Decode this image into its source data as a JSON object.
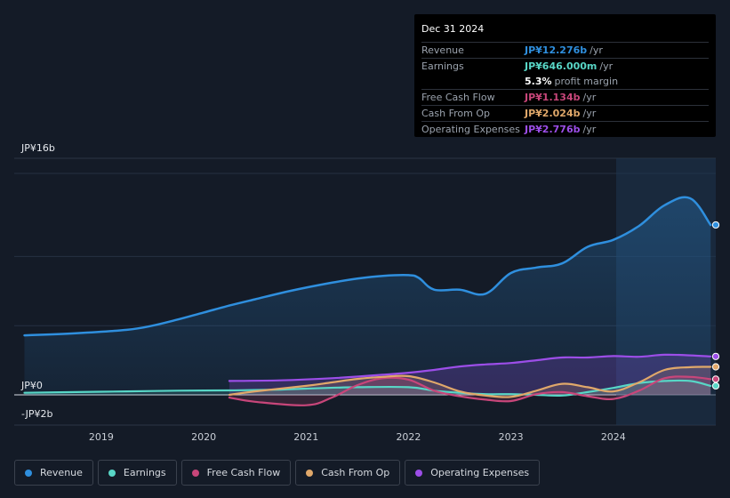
{
  "tooltip": {
    "date": "Dec 31 2024",
    "revenue_label": "Revenue",
    "revenue_value": "JP¥12.276b",
    "earnings_label": "Earnings",
    "earnings_value": "JP¥646.000m",
    "margin_value": "5.3%",
    "margin_label": "profit margin",
    "fcf_label": "Free Cash Flow",
    "fcf_value": "JP¥1.134b",
    "cfo_label": "Cash From Op",
    "cfo_value": "JP¥2.024b",
    "opex_label": "Operating Expenses",
    "opex_value": "JP¥2.776b",
    "unit": "/yr"
  },
  "legend": {
    "revenue": "Revenue",
    "earnings": "Earnings",
    "fcf": "Free Cash Flow",
    "cfo": "Cash From Op",
    "opex": "Operating Expenses"
  },
  "colors": {
    "revenue": "#2f8fde",
    "earnings": "#58d6c6",
    "fcf": "#c8467a",
    "cfo": "#e0a86a",
    "opex": "#9c4ee8"
  },
  "chart_data": {
    "type": "area",
    "ylabels": [
      "JP¥16b",
      "JP¥0",
      "-JP¥2b"
    ],
    "ylim": [
      -2,
      16
    ],
    "xlim": [
      2018.15,
      2025.0
    ],
    "xticks": [
      2019,
      2020,
      2021,
      2022,
      2023,
      2024
    ],
    "xtick_labels": [
      "2019",
      "2020",
      "2021",
      "2022",
      "2023",
      "2024"
    ],
    "series": [
      {
        "name": "Revenue",
        "key": "revenue",
        "x": [
          2018.25,
          2018.75,
          2019.25,
          2019.5,
          2019.75,
          2020.0,
          2020.25,
          2020.5,
          2020.75,
          2021.0,
          2021.25,
          2021.5,
          2021.75,
          2022.0,
          2022.1,
          2022.25,
          2022.5,
          2022.75,
          2023.0,
          2023.25,
          2023.5,
          2023.75,
          2024.0,
          2024.25,
          2024.5,
          2024.75,
          2024.95
        ],
        "values": [
          4.3,
          4.45,
          4.7,
          5.0,
          5.45,
          5.95,
          6.45,
          6.9,
          7.35,
          7.75,
          8.1,
          8.4,
          8.6,
          8.65,
          8.45,
          7.6,
          7.6,
          7.3,
          8.8,
          9.2,
          9.5,
          10.7,
          11.2,
          12.2,
          13.7,
          14.2,
          12.276
        ]
      },
      {
        "name": "Earnings",
        "key": "earnings",
        "x": [
          2018.25,
          2018.75,
          2019.25,
          2019.75,
          2020.25,
          2020.75,
          2021.0,
          2021.5,
          2022.0,
          2022.25,
          2022.5,
          2022.75,
          2023.0,
          2023.25,
          2023.5,
          2023.75,
          2024.0,
          2024.25,
          2024.5,
          2024.75,
          2024.95
        ],
        "values": [
          0.15,
          0.2,
          0.25,
          0.3,
          0.32,
          0.38,
          0.45,
          0.55,
          0.55,
          0.3,
          0.15,
          0.05,
          0.05,
          0.0,
          -0.05,
          0.2,
          0.5,
          0.85,
          1.0,
          1.0,
          0.646
        ]
      },
      {
        "name": "Free Cash Flow",
        "key": "fcf",
        "x": [
          2020.25,
          2020.5,
          2021.0,
          2021.25,
          2021.5,
          2021.75,
          2022.0,
          2022.25,
          2022.5,
          2022.75,
          2023.0,
          2023.25,
          2023.5,
          2023.75,
          2024.0,
          2024.25,
          2024.5,
          2024.75,
          2024.95
        ],
        "values": [
          -0.2,
          -0.5,
          -0.75,
          -0.2,
          0.7,
          1.2,
          1.1,
          0.3,
          -0.1,
          -0.35,
          -0.45,
          0.05,
          0.2,
          -0.1,
          -0.3,
          0.3,
          1.2,
          1.3,
          1.134
        ]
      },
      {
        "name": "Cash From Op",
        "key": "cfo",
        "x": [
          2020.25,
          2020.5,
          2021.0,
          2021.25,
          2021.5,
          2021.75,
          2022.0,
          2022.25,
          2022.5,
          2022.75,
          2023.0,
          2023.25,
          2023.5,
          2023.75,
          2024.0,
          2024.25,
          2024.5,
          2024.75,
          2024.95
        ],
        "values": [
          0.0,
          0.25,
          0.65,
          0.9,
          1.15,
          1.3,
          1.35,
          0.9,
          0.25,
          -0.05,
          -0.15,
          0.3,
          0.8,
          0.55,
          0.25,
          0.9,
          1.8,
          2.0,
          2.024
        ]
      },
      {
        "name": "Operating Expenses",
        "key": "opex",
        "x": [
          2020.25,
          2020.75,
          2021.25,
          2021.75,
          2022.0,
          2022.25,
          2022.5,
          2022.75,
          2023.0,
          2023.25,
          2023.5,
          2023.75,
          2024.0,
          2024.25,
          2024.5,
          2024.75,
          2024.95
        ],
        "values": [
          1.0,
          1.05,
          1.2,
          1.45,
          1.6,
          1.8,
          2.05,
          2.2,
          2.3,
          2.5,
          2.7,
          2.7,
          2.8,
          2.75,
          2.9,
          2.85,
          2.776
        ]
      }
    ]
  }
}
